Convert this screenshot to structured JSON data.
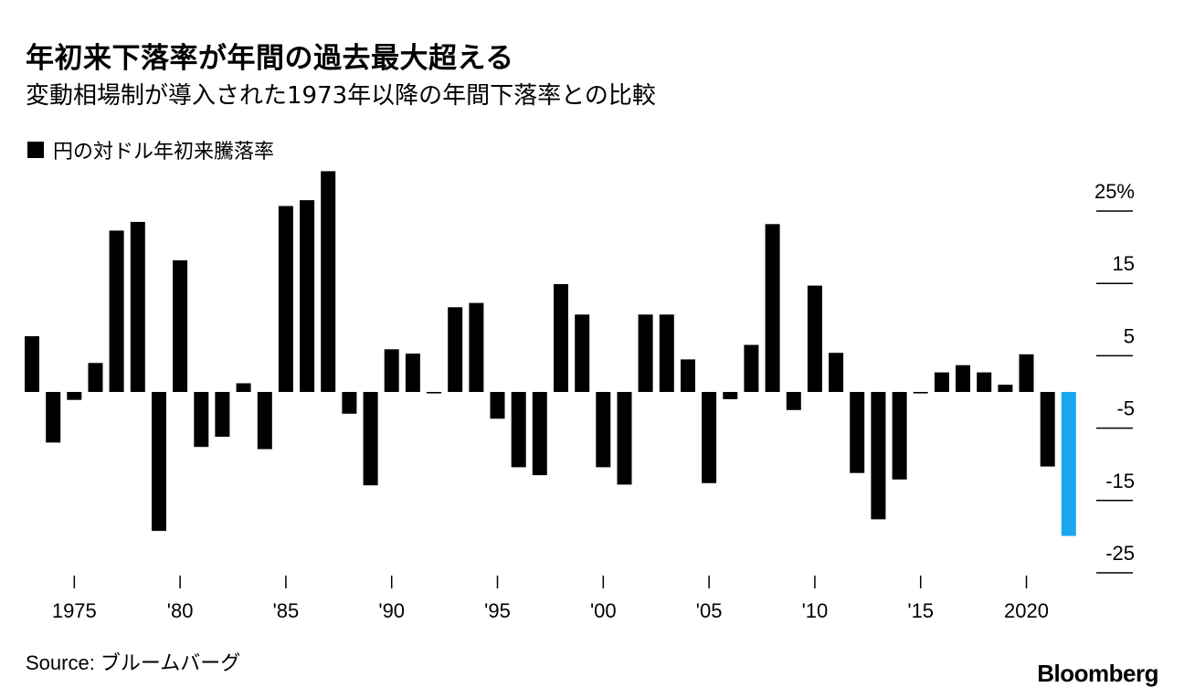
{
  "header": {
    "title": "年初来下落率が年間の過去最大超える",
    "subtitle": "変動相場制が導入された1973年以降の年間下落率との比較"
  },
  "legend": {
    "label": "円の対ドル年初来騰落率",
    "marker": "■"
  },
  "footer": {
    "source": "Source: ブルームバーグ",
    "logo": "Bloomberg"
  },
  "colors": {
    "bar": "#000000",
    "highlight": "#19a8ee",
    "axis": "#000000"
  },
  "chart_data": {
    "type": "bar",
    "title": "年初来下落率が年間の過去最大超える",
    "subtitle": "変動相場制が導入された1973年以降の年間下落率との比較",
    "xlabel": "",
    "ylabel": "",
    "ylim": [
      -25,
      30
    ],
    "y_ticks": [
      25,
      15,
      5,
      -5,
      -15,
      -25
    ],
    "y_tick_labels": [
      "25%",
      "15",
      "5",
      "-5",
      "-15",
      "-25"
    ],
    "y_axis_position": "right",
    "grid": false,
    "legend_position": "top-left",
    "x_ticks": [
      1975,
      1980,
      1985,
      1990,
      1995,
      2000,
      2005,
      2010,
      2015,
      2020
    ],
    "x_tick_labels": [
      "1975",
      "'80",
      "'85",
      "'90",
      "'95",
      "'00",
      "'05",
      "'10",
      "'15",
      "2020"
    ],
    "highlight_year": 2022,
    "series": [
      {
        "name": "円の対ドル年初来騰落率",
        "x": [
          1973,
          1974,
          1975,
          1976,
          1977,
          1978,
          1979,
          1980,
          1981,
          1982,
          1983,
          1984,
          1985,
          1986,
          1987,
          1988,
          1989,
          1990,
          1991,
          1992,
          1993,
          1994,
          1995,
          1996,
          1997,
          1998,
          1999,
          2000,
          2001,
          2002,
          2003,
          2004,
          2005,
          2006,
          2007,
          2008,
          2009,
          2010,
          2011,
          2012,
          2013,
          2014,
          2015,
          2016,
          2017,
          2018,
          2019,
          2020,
          2021,
          2022
        ],
        "values": [
          7.7,
          -7.0,
          -1.1,
          4.0,
          22.3,
          23.5,
          -19.2,
          18.2,
          -7.6,
          -6.2,
          1.2,
          -7.9,
          25.7,
          26.5,
          30.5,
          -3.0,
          -12.9,
          5.9,
          5.3,
          -0.2,
          11.7,
          12.3,
          -3.7,
          -10.4,
          -11.5,
          14.9,
          10.7,
          -10.4,
          -12.8,
          10.7,
          10.7,
          4.5,
          -12.6,
          -1.0,
          6.5,
          23.2,
          -2.5,
          14.7,
          5.4,
          -11.2,
          -17.6,
          -12.1,
          -0.2,
          2.7,
          3.7,
          2.7,
          1.0,
          5.2,
          -10.3,
          -19.9
        ]
      }
    ]
  }
}
